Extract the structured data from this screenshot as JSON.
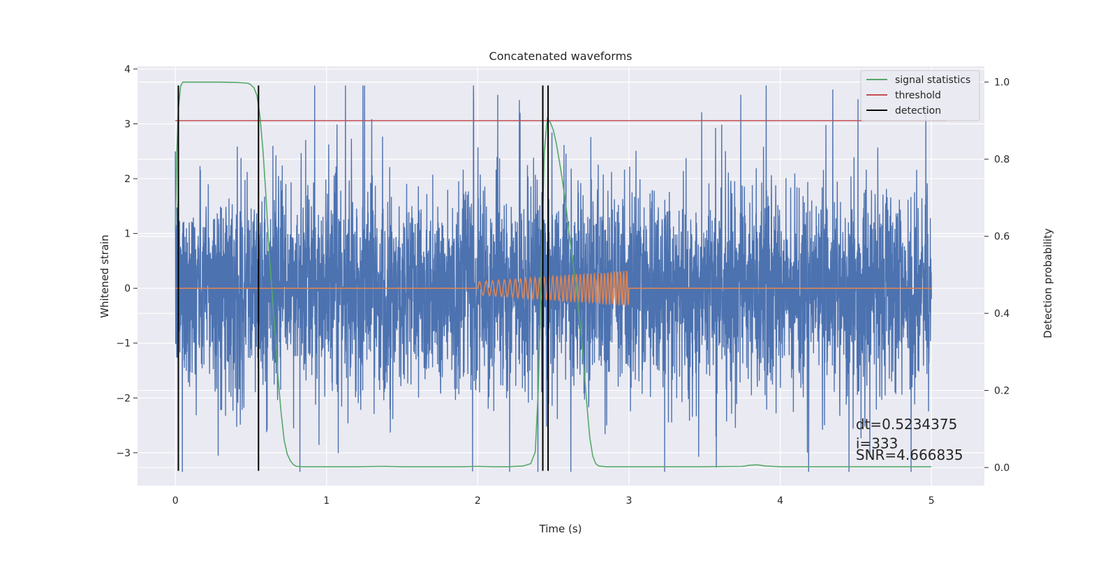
{
  "chart_data": {
    "type": "line",
    "title": "Concatenated waveforms",
    "xlabel": "Time (s)",
    "ylabel": "Whitened strain",
    "ylabel_right": "Detection probability",
    "xlim": [
      -0.25,
      5.35
    ],
    "ylim": [
      -3.6,
      4.05
    ],
    "ylim_right": [
      -0.047,
      1.041
    ],
    "x_ticks": [
      0,
      1,
      2,
      3,
      4,
      5
    ],
    "x_tick_labels": [
      "0",
      "1",
      "2",
      "3",
      "4",
      "5"
    ],
    "y_ticks": [
      -3,
      -2,
      -1,
      0,
      1,
      2,
      3,
      4
    ],
    "y_tick_labels": [
      "−3",
      "−2",
      "−1",
      "0",
      "1",
      "2",
      "3",
      "4"
    ],
    "y_ticks_right": [
      0.0,
      0.2,
      0.4,
      0.6,
      0.8,
      1.0
    ],
    "y_tick_labels_right": [
      "0.0",
      "0.2",
      "0.4",
      "0.6",
      "0.8",
      "1.0"
    ],
    "grid": true,
    "legend_position": "top-right",
    "series": [
      {
        "name": "",
        "role": "whitened strain noise",
        "axis": "left",
        "color": "#4c72b0",
        "x_range": [
          0,
          5
        ],
        "amplitude_core": 1.0,
        "amplitude_peak": 3.7
      },
      {
        "name": "",
        "role": "injected chirp",
        "axis": "left",
        "color": "#dd8452",
        "x_range": [
          0,
          5
        ],
        "chirp_start": 2.0,
        "chirp_end": 3.0,
        "chirp_amp_start": 0.12,
        "chirp_amp_end": 0.33,
        "chirp_cycles": 36
      },
      {
        "name": "signal statistics",
        "axis": "right",
        "color": "#55a868",
        "x": [
          0.0,
          0.01,
          0.02,
          0.035,
          0.05,
          0.07,
          0.1,
          0.15,
          0.2,
          0.3,
          0.4,
          0.45,
          0.48,
          0.5,
          0.52,
          0.54,
          0.56,
          0.58,
          0.6,
          0.62,
          0.65,
          0.68,
          0.7,
          0.72,
          0.74,
          0.76,
          0.78,
          0.8,
          0.85,
          0.9,
          1.0,
          1.2,
          1.38,
          1.5,
          1.7,
          1.9,
          2.0,
          2.1,
          2.2,
          2.3,
          2.35,
          2.38,
          2.4,
          2.42,
          2.44,
          2.46,
          2.47,
          2.48,
          2.5,
          2.52,
          2.55,
          2.58,
          2.6,
          2.63,
          2.66,
          2.68,
          2.7,
          2.72,
          2.74,
          2.76,
          2.78,
          2.8,
          2.85,
          3.0,
          3.2,
          3.5,
          3.75,
          3.8,
          3.85,
          3.9,
          4.0,
          4.2,
          4.5,
          4.8,
          5.0
        ],
        "y": [
          0.62,
          0.82,
          0.93,
          0.99,
          1.0,
          1.0,
          1.0,
          1.0,
          1.0,
          1.0,
          0.999,
          0.998,
          0.997,
          0.993,
          0.985,
          0.965,
          0.91,
          0.82,
          0.7,
          0.56,
          0.4,
          0.23,
          0.14,
          0.07,
          0.035,
          0.018,
          0.008,
          0.003,
          0.002,
          0.002,
          0.002,
          0.002,
          0.003,
          0.002,
          0.002,
          0.002,
          0.003,
          0.002,
          0.002,
          0.004,
          0.01,
          0.04,
          0.2,
          0.52,
          0.82,
          0.905,
          0.9,
          0.895,
          0.875,
          0.84,
          0.77,
          0.69,
          0.62,
          0.53,
          0.44,
          0.36,
          0.27,
          0.17,
          0.08,
          0.03,
          0.01,
          0.004,
          0.002,
          0.002,
          0.002,
          0.002,
          0.003,
          0.006,
          0.007,
          0.004,
          0.002,
          0.002,
          0.002,
          0.002,
          0.002
        ]
      },
      {
        "name": "threshold",
        "axis": "right",
        "color": "#c44e52",
        "x": [
          0,
          5.1
        ],
        "y": [
          0.9,
          0.9
        ]
      },
      {
        "name": "detection",
        "axis": "left",
        "color": "#000000",
        "vlines": [
          0.02,
          0.55,
          2.43,
          2.465
        ],
        "ymin": -3.33,
        "ymax": 3.7
      }
    ],
    "annotations": [
      {
        "text": "dt=0.5234375",
        "x": 4.5,
        "y": -2.57
      },
      {
        "text": " i=333",
        "x": 4.5,
        "y": -2.92
      },
      {
        "text": "SNR=4.666835",
        "x": 4.5,
        "y": -3.13
      }
    ]
  }
}
